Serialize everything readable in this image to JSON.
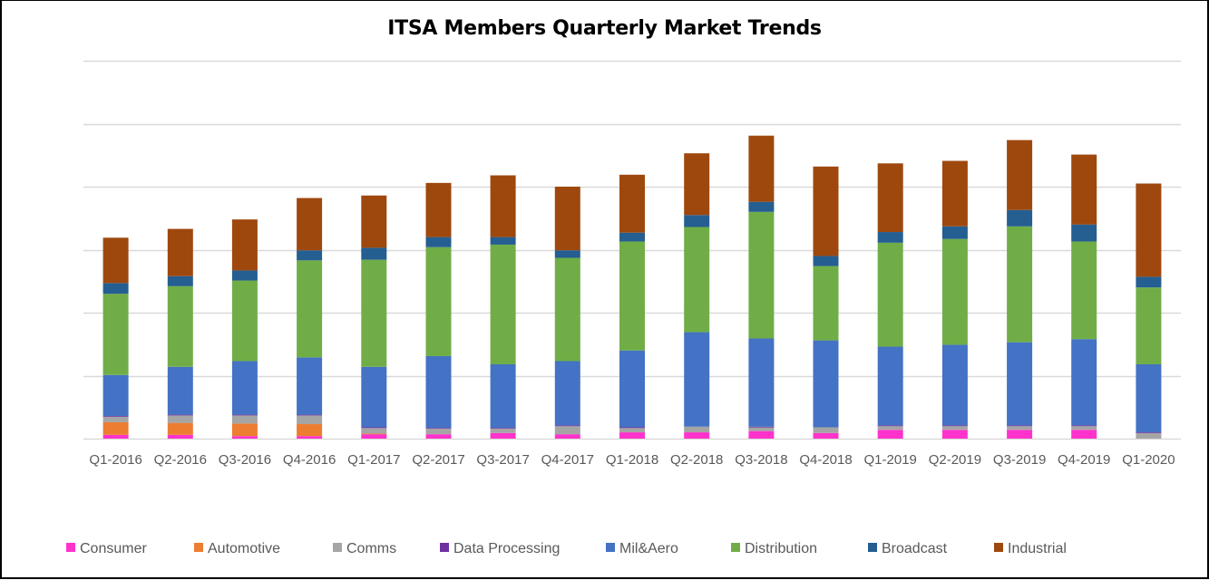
{
  "chart_data": {
    "type": "bar",
    "stacked": true,
    "title": "ITSA Members Quarterly Market Trends",
    "xlabel": "",
    "ylabel": "",
    "ylim": [
      0,
      6
    ],
    "grid": true,
    "y_tick_labels_shown": false,
    "legend_position": "bottom",
    "categories": [
      "Q1-2016",
      "Q2-2016",
      "Q3-2016",
      "Q4-2016",
      "Q1-2017",
      "Q2-2017",
      "Q3-2017",
      "Q4-2017",
      "Q1-2018",
      "Q2-2018",
      "Q3-2018",
      "Q4-2018",
      "Q1-2019",
      "Q2-2019",
      "Q3-2019",
      "Q4-2019",
      "Q1-2020"
    ],
    "series": [
      {
        "name": "Consumer",
        "color": "#FF33CC",
        "values": [
          0.06,
          0.06,
          0.04,
          0.04,
          0.07,
          0.07,
          0.09,
          0.07,
          0.1,
          0.1,
          0.12,
          0.09,
          0.14,
          0.14,
          0.14,
          0.14,
          0.0
        ]
      },
      {
        "name": "Automotive",
        "color": "#ED7D31",
        "values": [
          0.2,
          0.19,
          0.2,
          0.19,
          0.01,
          0,
          0,
          0,
          0,
          0,
          0,
          0,
          0,
          0,
          0,
          0,
          0
        ]
      },
      {
        "name": "Comms",
        "color": "#A5A5A5",
        "values": [
          0.09,
          0.12,
          0.13,
          0.14,
          0.09,
          0.09,
          0.07,
          0.13,
          0.07,
          0.09,
          0.06,
          0.09,
          0.06,
          0.06,
          0.06,
          0.06,
          0.09
        ]
      },
      {
        "name": "Data Processing",
        "color": "#7030A0",
        "values": [
          0.01,
          0.01,
          0.01,
          0.01,
          0.01,
          0.01,
          0.01,
          0.01,
          0.01,
          0,
          0.01,
          0,
          0.01,
          0.01,
          0.01,
          0.01,
          0.01
        ]
      },
      {
        "name": "Mil&Aero",
        "color": "#4472C4",
        "values": [
          0.65,
          0.76,
          0.85,
          0.91,
          0.96,
          1.14,
          1.01,
          1.02,
          1.22,
          1.5,
          1.4,
          1.38,
          1.25,
          1.28,
          1.32,
          1.37,
          1.08
        ]
      },
      {
        "name": "Distribution",
        "color": "#70AD47",
        "values": [
          1.29,
          1.28,
          1.28,
          1.54,
          1.7,
          1.73,
          1.9,
          1.64,
          1.73,
          1.67,
          2.01,
          1.18,
          1.65,
          1.68,
          1.84,
          1.55,
          1.22
        ]
      },
      {
        "name": "Broadcast",
        "color": "#255E91",
        "values": [
          0.17,
          0.16,
          0.16,
          0.16,
          0.19,
          0.16,
          0.12,
          0.12,
          0.14,
          0.19,
          0.16,
          0.16,
          0.17,
          0.2,
          0.26,
          0.27,
          0.17
        ]
      },
      {
        "name": "Industrial",
        "color": "#9E480E",
        "values": [
          0.72,
          0.75,
          0.81,
          0.83,
          0.83,
          0.86,
          0.98,
          1.01,
          0.92,
          0.98,
          1.05,
          1.42,
          1.09,
          1.04,
          1.11,
          1.11,
          1.48
        ]
      }
    ]
  },
  "colors": {
    "gridline": "#D9D9D9",
    "tick_label": "#595959",
    "border": "#000000"
  }
}
